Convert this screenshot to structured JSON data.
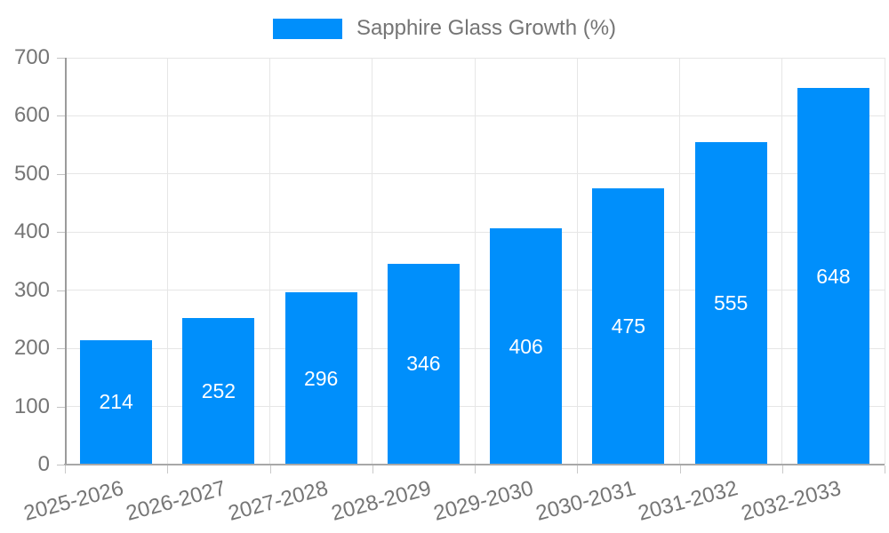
{
  "legend": {
    "items": [
      {
        "label": "Sapphire Glass Growth (%)",
        "color": "#008FFB"
      }
    ]
  },
  "colors": {
    "bar": "#008FFB",
    "value_label": "#ffffff",
    "axis_text": "#757575",
    "grid": "#e6e6e6",
    "axis_line": "#9b9b9b",
    "background": "#ffffff"
  },
  "chart_data": {
    "type": "bar",
    "title": "Sapphire Glass Growth (%)",
    "categories": [
      "2025-2026",
      "2026-2027",
      "2027-2028",
      "2028-2029",
      "2029-2030",
      "2030-2031",
      "2031-2032",
      "2032-2033"
    ],
    "series": [
      {
        "name": "Sapphire Glass Growth (%)",
        "values": [
          214,
          252,
          296,
          346,
          406,
          475,
          555,
          648
        ]
      }
    ],
    "value_labels_shown": true,
    "xlabel": "",
    "ylabel": "",
    "ylim": [
      0,
      700
    ],
    "ytick_step": 100,
    "grid": true,
    "legend_position": "top",
    "xlabel_rotation_deg": -15
  }
}
